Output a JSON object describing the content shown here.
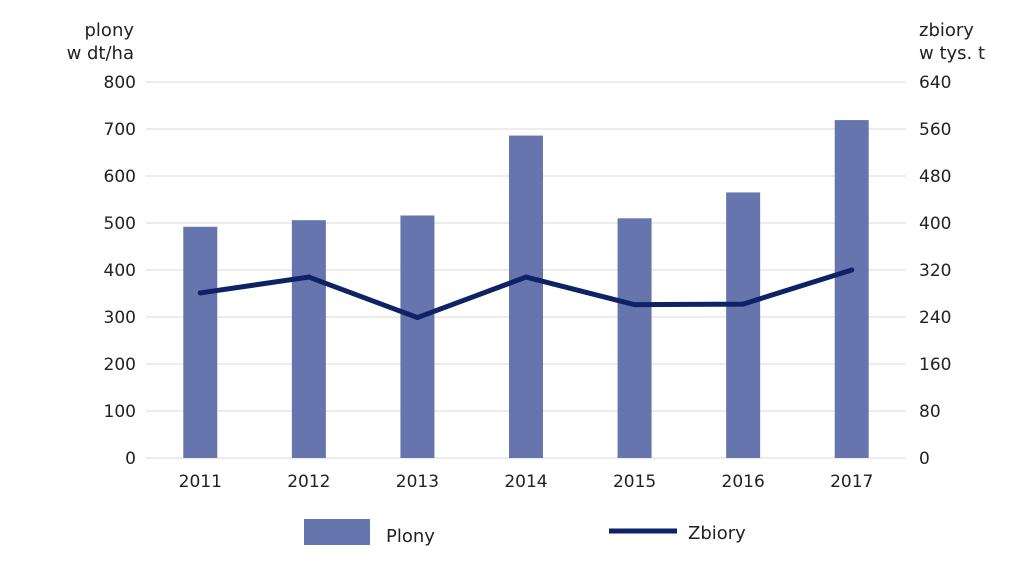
{
  "chart_data": {
    "type": "bar",
    "categories": [
      "2011",
      "2012",
      "2013",
      "2014",
      "2015",
      "2016",
      "2017"
    ],
    "series": [
      {
        "name": "Plony",
        "type": "bar",
        "axis": "left",
        "color": "#6675ad",
        "values": [
          492,
          506,
          516,
          686,
          510,
          565,
          719
        ]
      },
      {
        "name": "Zbiory",
        "type": "line",
        "axis": "right",
        "color": "#0f2266",
        "values": [
          281,
          308,
          239,
          308,
          261,
          262,
          320
        ]
      }
    ],
    "ylabel_left": [
      "plony",
      "w dt/ha"
    ],
    "ylabel_right": [
      "zbiory",
      "w tys. t"
    ],
    "ylim_left": [
      0,
      800
    ],
    "ylim_right": [
      0,
      640
    ],
    "yticks_left": [
      "0",
      "100",
      "200",
      "300",
      "400",
      "500",
      "600",
      "700",
      "800"
    ],
    "yticks_right": [
      "0",
      "80",
      "160",
      "240",
      "320",
      "400",
      "480",
      "560",
      "640"
    ],
    "grid": true,
    "legend_position": "bottom"
  }
}
